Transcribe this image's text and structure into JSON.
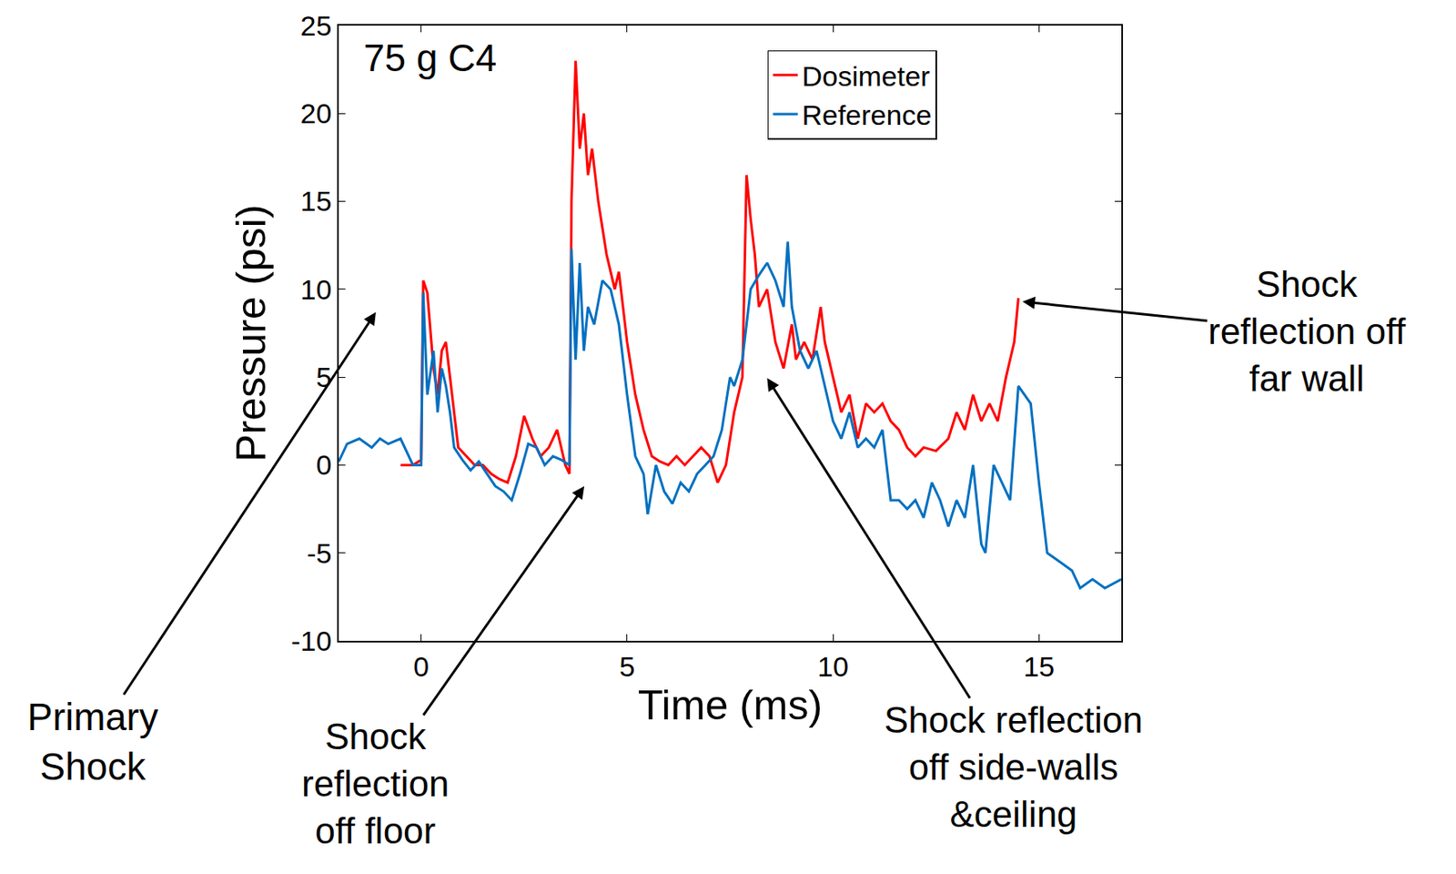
{
  "chart_data": {
    "type": "line",
    "title": "75 g C4",
    "x_label": "Time (ms)",
    "y_label": "Pressure (psi)",
    "xlim": [
      -2,
      17
    ],
    "xticks": [
      0,
      5,
      10,
      15
    ],
    "ylim": [
      -10,
      25
    ],
    "yticks": [
      -10,
      -5,
      0,
      5,
      10,
      15,
      20,
      25
    ],
    "grid": false,
    "legend": "upper right",
    "series": [
      {
        "name": "Dosimeter",
        "color": "#ff0000",
        "x": [
          -0.5,
          -0.2,
          0,
          0.05,
          0.15,
          0.3,
          0.4,
          0.5,
          0.6,
          0.7,
          0.8,
          0.9,
          1.1,
          1.3,
          1.5,
          1.7,
          1.9,
          2.1,
          2.3,
          2.5,
          2.7,
          2.9,
          3.1,
          3.3,
          3.5,
          3.6,
          3.65,
          3.75,
          3.85,
          3.95,
          4.05,
          4.15,
          4.3,
          4.5,
          4.7,
          4.8,
          5.0,
          5.2,
          5.4,
          5.6,
          5.8,
          6.0,
          6.2,
          6.4,
          6.6,
          6.8,
          7.0,
          7.2,
          7.4,
          7.6,
          7.8,
          7.9,
          8.0,
          8.1,
          8.2,
          8.4,
          8.6,
          8.8,
          9.0,
          9.1,
          9.3,
          9.5,
          9.7,
          9.8,
          10.0,
          10.2,
          10.4,
          10.6,
          10.8,
          11.0,
          11.2,
          11.4,
          11.6,
          11.8,
          12.0,
          12.2,
          12.5,
          12.8,
          13.0,
          13.2,
          13.4,
          13.6,
          13.8,
          14.0,
          14.2,
          14.4,
          14.5
        ],
        "values": [
          0,
          0,
          0.3,
          10.5,
          9.8,
          5.5,
          4,
          6.5,
          7,
          5,
          3,
          1,
          0.5,
          0,
          0,
          -0.5,
          -0.8,
          -1,
          0.5,
          2.8,
          1.5,
          0.5,
          1,
          2,
          0,
          -0.5,
          15,
          23,
          18,
          20,
          16.5,
          18,
          15,
          12,
          10,
          11,
          7,
          4,
          2,
          0.5,
          0.2,
          0,
          0.5,
          0,
          0.5,
          1,
          0.5,
          -1,
          0,
          3,
          5,
          16.5,
          14,
          12,
          9,
          10,
          7,
          5.5,
          8,
          6,
          7,
          6,
          9,
          7,
          5,
          3,
          4,
          1.5,
          3.5,
          3,
          3.5,
          2.5,
          2,
          1,
          0.5,
          1,
          0.8,
          1.5,
          3,
          2,
          4,
          2.5,
          3.5,
          2.5,
          5,
          7,
          9.5
        ]
      },
      {
        "name": "Reference",
        "color": "#0070c0",
        "x": [
          -2,
          -1.8,
          -1.5,
          -1.2,
          -1,
          -0.8,
          -0.5,
          -0.2,
          0,
          0.05,
          0.15,
          0.3,
          0.4,
          0.5,
          0.6,
          0.7,
          0.8,
          1.0,
          1.2,
          1.4,
          1.6,
          1.8,
          2.0,
          2.2,
          2.4,
          2.6,
          2.8,
          3.0,
          3.2,
          3.4,
          3.6,
          3.65,
          3.75,
          3.85,
          3.95,
          4.05,
          4.2,
          4.4,
          4.6,
          4.8,
          5.0,
          5.2,
          5.4,
          5.5,
          5.7,
          5.9,
          6.1,
          6.3,
          6.5,
          6.7,
          6.9,
          7.1,
          7.3,
          7.5,
          7.6,
          7.8,
          8.0,
          8.2,
          8.4,
          8.6,
          8.8,
          8.9,
          9.0,
          9.2,
          9.4,
          9.6,
          9.8,
          10.0,
          10.2,
          10.4,
          10.6,
          10.8,
          11.0,
          11.2,
          11.4,
          11.6,
          11.8,
          12.0,
          12.2,
          12.4,
          12.6,
          12.8,
          13.0,
          13.2,
          13.4,
          13.6,
          13.7,
          13.9,
          14.1,
          14.3,
          14.5,
          14.8,
          15.0,
          15.2,
          15.5,
          15.8,
          16.0,
          16.3,
          16.6,
          17.0
        ],
        "values": [
          0.2,
          1.2,
          1.5,
          1,
          1.5,
          1.2,
          1.5,
          0,
          0,
          9.8,
          4,
          6.5,
          3,
          5.5,
          4.5,
          3,
          1,
          0.3,
          -0.3,
          0.2,
          -0.5,
          -1.2,
          -1.5,
          -2,
          -0.5,
          1.2,
          1,
          0,
          0.5,
          0.3,
          0,
          12.3,
          6,
          11.5,
          6.5,
          9,
          8,
          10.5,
          10,
          8,
          4,
          0.5,
          -0.5,
          -2.8,
          0,
          -1.5,
          -2.2,
          -1,
          -1.5,
          -0.5,
          0,
          0.5,
          2,
          5,
          4.5,
          6,
          10,
          10.8,
          11.5,
          10.5,
          9,
          12.7,
          9,
          6.5,
          5.5,
          6.5,
          4.5,
          2.5,
          1.5,
          3,
          1,
          1.5,
          1,
          2,
          -2,
          -2,
          -2.5,
          -2,
          -3,
          -1,
          -2,
          -3.5,
          -2,
          -3,
          0,
          -4.5,
          -5,
          0,
          -1,
          -2,
          4.5,
          3.5,
          -1,
          -5,
          -5.5,
          -6,
          -7,
          -6.5,
          -7,
          -6.5
        ]
      }
    ],
    "annotations": [
      {
        "text": "Primary Shock",
        "x": -1.1,
        "y": 8.7
      },
      {
        "text": "Shock reflection off floor",
        "x": 3.96,
        "y": -1.2
      },
      {
        "text": "Shock reflection off side-walls &ceiling",
        "x": 8.4,
        "y": 4.95
      },
      {
        "text": "Shock reflection off far wall",
        "x": 14.6,
        "y": 9.3
      }
    ]
  }
}
